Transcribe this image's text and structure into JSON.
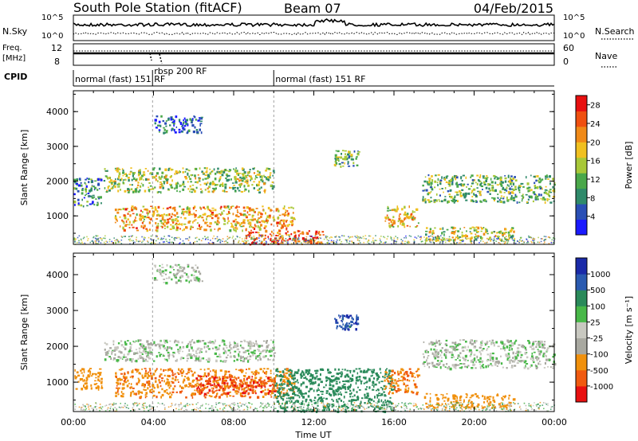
{
  "header": {
    "station": "South Pole Station (fitACF)",
    "beam": "Beam 07",
    "date": "04/Feb/2015"
  },
  "summary_labels": {
    "nsky": "N.Sky",
    "nsearch": "N.Search",
    "freq": "Freq.",
    "freq_unit": "[MHz]",
    "nave": "Nave",
    "cpid": "CPID"
  },
  "summary_ticks": {
    "noise_top": "10^5",
    "noise_bottom": "10^0",
    "freq_top": "12",
    "freq_bottom": "8",
    "nave_top": "60",
    "nave_bottom": "0"
  },
  "cpid_modes": [
    {
      "label": "normal (fast) 151 RF",
      "start_hour": 0,
      "end_hour": 3.95
    },
    {
      "label": "rbsp 200 RF",
      "start_hour": 3.95,
      "end_hour": 10.0
    },
    {
      "label": "normal (fast) 151 RF",
      "start_hour": 10.0,
      "end_hour": 24.0
    }
  ],
  "colors": {
    "power_scale": [
      "#1a1aff",
      "#2a4fb5",
      "#2f8a6a",
      "#4aa84a",
      "#a8c838",
      "#f0c020",
      "#f08a18",
      "#f05010",
      "#e81010"
    ],
    "velocity_scale": [
      "#e81010",
      "#f05a10",
      "#f0900c",
      "#a8a8a0",
      "#c8c8c0",
      "#48b848",
      "#2a8a5a",
      "#2a5ab0",
      "#1a2aa8"
    ]
  },
  "chart_data": [
    {
      "type": "heatmap",
      "ylabel": "Slant Range [km]",
      "xlabel": "Time UT",
      "x_ticks": [
        "00:00",
        "04:00",
        "08:00",
        "12:00",
        "16:00",
        "20:00",
        "00:00"
      ],
      "y_ticks": [
        "1000",
        "2000",
        "3000",
        "4000"
      ],
      "xlim_hours": [
        0,
        24
      ],
      "ylim_km": [
        180,
        4600
      ],
      "colorbar": {
        "label": "Power [dB]",
        "ticks": [
          "4",
          "8",
          "12",
          "16",
          "20",
          "24",
          "28"
        ],
        "range": [
          0,
          30
        ]
      },
      "echo_regions": [
        {
          "t_start": 0.0,
          "t_end": 1.4,
          "r_start": 1300,
          "r_end": 2100,
          "level": 8
        },
        {
          "t_start": 1.5,
          "t_end": 10.0,
          "r_start": 1700,
          "r_end": 2400,
          "level": 14
        },
        {
          "t_start": 4.0,
          "t_end": 6.4,
          "r_start": 3400,
          "r_end": 3900,
          "level": 6
        },
        {
          "t_start": 2.0,
          "t_end": 11.0,
          "r_start": 600,
          "r_end": 1300,
          "level": 20
        },
        {
          "t_start": 8.5,
          "t_end": 12.5,
          "r_start": 200,
          "r_end": 600,
          "level": 26
        },
        {
          "t_start": 13.0,
          "t_end": 14.2,
          "r_start": 2400,
          "r_end": 2900,
          "level": 12
        },
        {
          "t_start": 15.5,
          "t_end": 17.2,
          "r_start": 700,
          "r_end": 1300,
          "level": 18
        },
        {
          "t_start": 17.4,
          "t_end": 24.0,
          "r_start": 1400,
          "r_end": 2200,
          "level": 12
        },
        {
          "t_start": 17.5,
          "t_end": 22.0,
          "r_start": 300,
          "r_end": 700,
          "level": 16
        }
      ]
    },
    {
      "type": "heatmap",
      "ylabel": "Slant Range [km]",
      "xlabel": "Time UT",
      "x_ticks": [
        "00:00",
        "04:00",
        "08:00",
        "12:00",
        "16:00",
        "20:00",
        "00:00"
      ],
      "y_ticks": [
        "1000",
        "2000",
        "3000",
        "4000"
      ],
      "xlim_hours": [
        0,
        24
      ],
      "ylim_km": [
        180,
        4600
      ],
      "colorbar": {
        "label": "Velocity [m s⁻¹]",
        "ticks": [
          "-1000",
          "-500",
          "-100",
          "-25",
          "25",
          "100",
          "500",
          "1000"
        ],
        "range": [
          -1200,
          1200
        ]
      },
      "echo_regions": [
        {
          "t_start": 0.0,
          "t_end": 1.4,
          "r_start": 800,
          "r_end": 1400,
          "level": -300
        },
        {
          "t_start": 1.5,
          "t_end": 10.0,
          "r_start": 1600,
          "r_end": 2200,
          "level": 0
        },
        {
          "t_start": 4.0,
          "t_end": 6.4,
          "r_start": 3800,
          "r_end": 4300,
          "level": 0
        },
        {
          "t_start": 2.0,
          "t_end": 11.0,
          "r_start": 600,
          "r_end": 1400,
          "level": -400
        },
        {
          "t_start": 6.0,
          "t_end": 10.0,
          "r_start": 700,
          "r_end": 1200,
          "level": -900
        },
        {
          "t_start": 10.0,
          "t_end": 16.0,
          "r_start": 200,
          "r_end": 1400,
          "level": 300
        },
        {
          "t_start": 13.0,
          "t_end": 14.2,
          "r_start": 2500,
          "r_end": 2900,
          "level": 900
        },
        {
          "t_start": 15.5,
          "t_end": 17.2,
          "r_start": 700,
          "r_end": 1400,
          "level": -500
        },
        {
          "t_start": 17.4,
          "t_end": 24.0,
          "r_start": 1400,
          "r_end": 2200,
          "level": 0
        },
        {
          "t_start": 17.5,
          "t_end": 22.0,
          "r_start": 300,
          "r_end": 700,
          "level": -300
        }
      ]
    }
  ]
}
